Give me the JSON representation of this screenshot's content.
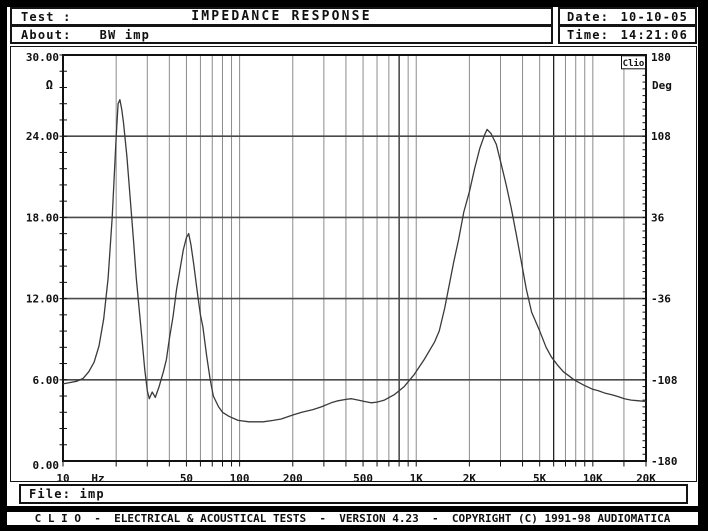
{
  "header": {
    "test_label": "Test :",
    "title": "IMPEDANCE RESPONSE",
    "date_label": "Date:",
    "date_value": "10-10-05",
    "about_label": "About:",
    "about_value": "BW imp",
    "time_label": "Time:",
    "time_value": "14:21:06"
  },
  "footer": {
    "file_label": "File:",
    "file_value": "imp",
    "statusbar": "C L I O  -  ELECTRICAL & ACOUSTICAL TESTS  -  VERSION 4.23  -  COPYRIGHT (C) 1991-98 AUDIOMATICA"
  },
  "colors": {
    "background": "#ffffff",
    "frame": "#111111",
    "grid_vertical": "#8c8c8c",
    "grid_horizontal": "#4a4a4a",
    "cursor_line": "#1a1a1a",
    "curve": "#3a3a3a"
  },
  "chart_data": {
    "type": "line",
    "title": "IMPEDANCE RESPONSE",
    "watermark": "Clio",
    "x_axis": {
      "label": "Hz",
      "scale": "log",
      "min": 10,
      "max": 20000,
      "tick_labels": [
        "10",
        "50",
        "100",
        "200",
        "500",
        "1K",
        "2K",
        "5K",
        "10K",
        "20K"
      ],
      "tick_values": [
        10,
        50,
        100,
        200,
        500,
        1000,
        2000,
        5000,
        10000,
        20000
      ],
      "gridlines": [
        20,
        30,
        40,
        50,
        60,
        70,
        80,
        90,
        100,
        200,
        300,
        400,
        500,
        600,
        700,
        800,
        900,
        1000,
        2000,
        3000,
        4000,
        5000,
        6000,
        7000,
        8000,
        9000,
        10000,
        15000
      ]
    },
    "y_left": {
      "label": "Ω",
      "min": 0,
      "max": 30,
      "ticks": [
        "30.00",
        "24.00",
        "18.00",
        "12.00",
        "6.00",
        "0.00"
      ],
      "values": [
        30,
        24,
        18,
        12,
        6,
        0
      ],
      "minor_tick_step": 1.2
    },
    "y_right": {
      "label": "Deg",
      "min": -180,
      "max": 180,
      "ticks": [
        "180",
        "108",
        "36",
        "-36",
        "-108",
        "-180"
      ],
      "values": [
        180,
        108,
        36,
        -36,
        -108,
        -180
      ],
      "minor_tick_step": 6
    },
    "cursor_lines_hz": [
      800,
      6000
    ],
    "legend": "off",
    "grid": "on",
    "series": [
      {
        "name": "impedance magnitude (Ω)",
        "points": [
          [
            10,
            5.7
          ],
          [
            11,
            5.8
          ],
          [
            12,
            5.9
          ],
          [
            13,
            6.1
          ],
          [
            14,
            6.6
          ],
          [
            15,
            7.3
          ],
          [
            16,
            8.5
          ],
          [
            17,
            10.5
          ],
          [
            18,
            13.5
          ],
          [
            19,
            18.0
          ],
          [
            20,
            24.0
          ],
          [
            20.5,
            26.4
          ],
          [
            21,
            26.7
          ],
          [
            21.5,
            26.0
          ],
          [
            22,
            25.0
          ],
          [
            23,
            22.5
          ],
          [
            24,
            19.5
          ],
          [
            25,
            16.5
          ],
          [
            26,
            13.5
          ],
          [
            27,
            11.2
          ],
          [
            28,
            9.0
          ],
          [
            29,
            6.8
          ],
          [
            30,
            5.2
          ],
          [
            30.8,
            4.6
          ],
          [
            32,
            5.1
          ],
          [
            33.3,
            4.7
          ],
          [
            35,
            5.5
          ],
          [
            37,
            6.6
          ],
          [
            38.5,
            7.5
          ],
          [
            40,
            9.0
          ],
          [
            42,
            10.7
          ],
          [
            44,
            12.7
          ],
          [
            46,
            14.2
          ],
          [
            48,
            15.6
          ],
          [
            50,
            16.5
          ],
          [
            51.5,
            16.8
          ],
          [
            53,
            16.0
          ],
          [
            55,
            14.5
          ],
          [
            58,
            12.2
          ],
          [
            60,
            10.8
          ],
          [
            62,
            9.9
          ],
          [
            65,
            7.8
          ],
          [
            68,
            6.1
          ],
          [
            71,
            4.8
          ],
          [
            76,
            4.0
          ],
          [
            80,
            3.6
          ],
          [
            87,
            3.3
          ],
          [
            98,
            3.0
          ],
          [
            113,
            2.9
          ],
          [
            136,
            2.9
          ],
          [
            155,
            3.0
          ],
          [
            172,
            3.1
          ],
          [
            200,
            3.4
          ],
          [
            225,
            3.6
          ],
          [
            260,
            3.8
          ],
          [
            290,
            4.0
          ],
          [
            330,
            4.3
          ],
          [
            360,
            4.45
          ],
          [
            400,
            4.55
          ],
          [
            430,
            4.6
          ],
          [
            470,
            4.5
          ],
          [
            510,
            4.4
          ],
          [
            555,
            4.3
          ],
          [
            600,
            4.35
          ],
          [
            660,
            4.5
          ],
          [
            750,
            4.9
          ],
          [
            855,
            5.5
          ],
          [
            975,
            6.4
          ],
          [
            1110,
            7.5
          ],
          [
            1270,
            8.8
          ],
          [
            1350,
            9.6
          ],
          [
            1450,
            11.3
          ],
          [
            1630,
            14.7
          ],
          [
            1740,
            16.4
          ],
          [
            1860,
            18.4
          ],
          [
            2000,
            19.9
          ],
          [
            2140,
            21.6
          ],
          [
            2290,
            23.1
          ],
          [
            2440,
            24.1
          ],
          [
            2520,
            24.5
          ],
          [
            2650,
            24.2
          ],
          [
            2840,
            23.4
          ],
          [
            3020,
            22.0
          ],
          [
            3230,
            20.4
          ],
          [
            3450,
            18.7
          ],
          [
            3690,
            16.7
          ],
          [
            3940,
            14.7
          ],
          [
            4200,
            12.7
          ],
          [
            4500,
            11.0
          ],
          [
            4970,
            9.7
          ],
          [
            5440,
            8.4
          ],
          [
            5820,
            7.7
          ],
          [
            6300,
            7.1
          ],
          [
            6800,
            6.6
          ],
          [
            7300,
            6.3
          ],
          [
            7820,
            6.0
          ],
          [
            8900,
            5.6
          ],
          [
            10000,
            5.3
          ],
          [
            10700,
            5.2
          ],
          [
            11800,
            5.0
          ],
          [
            12800,
            4.9
          ],
          [
            14000,
            4.75
          ],
          [
            15100,
            4.6
          ],
          [
            16500,
            4.5
          ],
          [
            18200,
            4.45
          ],
          [
            20000,
            4.4
          ]
        ]
      }
    ]
  }
}
